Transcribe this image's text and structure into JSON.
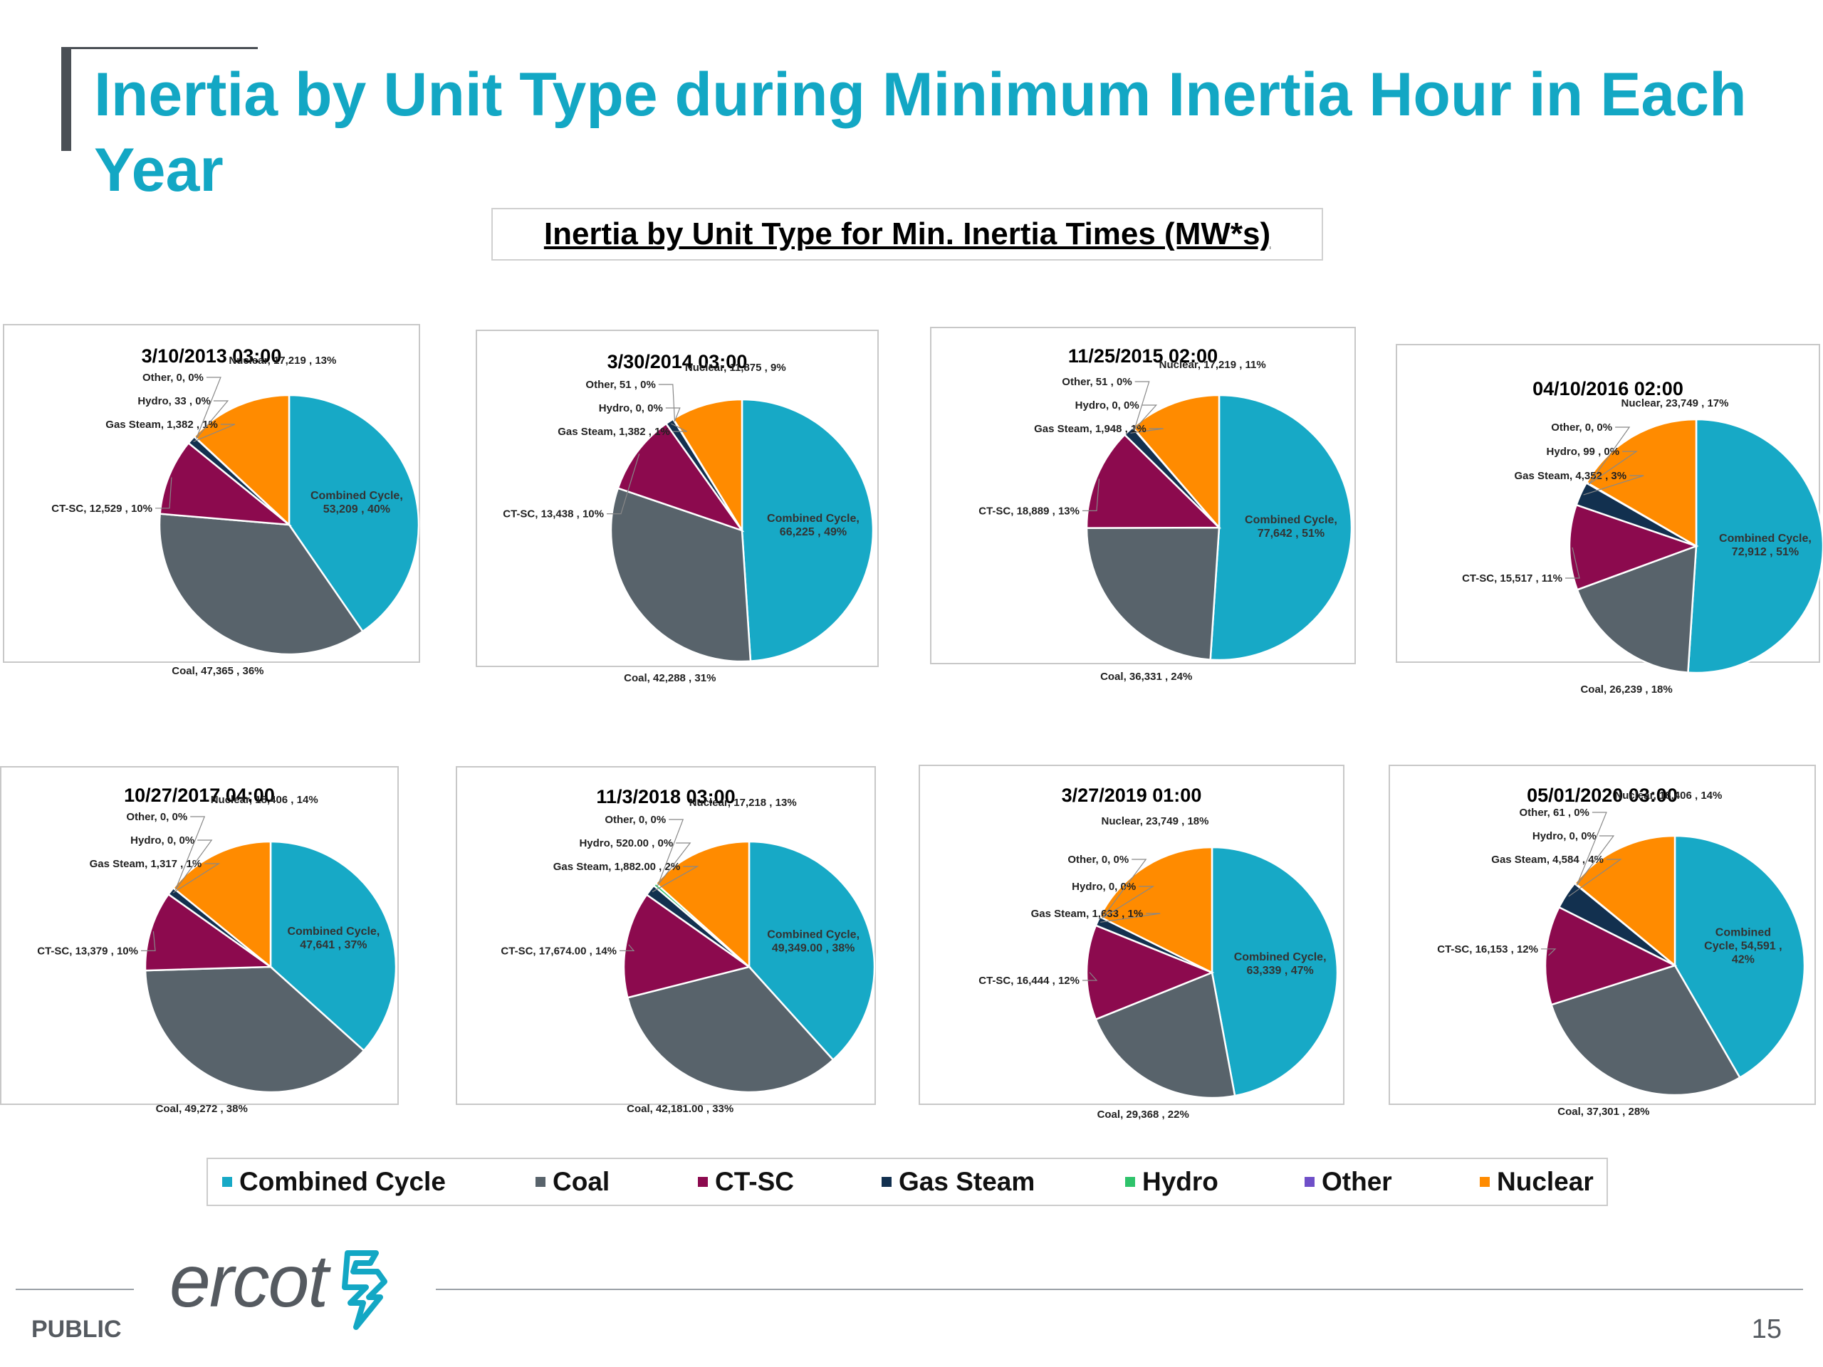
{
  "slide": {
    "title": "Inertia by Unit Type during Minimum Inertia Hour in Each Year",
    "chart_heading": "Inertia by Unit Type for Min. Inertia Times (MW*s)",
    "footer_public": "PUBLIC",
    "page_number": "15",
    "logo_text": "ercot"
  },
  "colors": {
    "Combined Cycle": "#17a9c6",
    "Coal": "#58636b",
    "CT-SC": "#8c0a4e",
    "Gas Steam": "#12304f",
    "Hydro": "#2ec36b",
    "Other": "#6f4fc8",
    "Nuclear": "#ff8b00",
    "title": "#13a7c4"
  },
  "legend": [
    "Combined Cycle",
    "Coal",
    "CT-SC",
    "Gas Steam",
    "Hydro",
    "Other",
    "Nuclear"
  ],
  "chart_data": [
    {
      "type": "pie",
      "title": "3/10/2013 03:00",
      "slices": [
        {
          "name": "Combined Cycle",
          "value": 53209,
          "label": "Combined Cycle,|53,209 , 40%"
        },
        {
          "name": "Coal",
          "value": 47365,
          "label": "Coal, 47,365 , 36%"
        },
        {
          "name": "CT-SC",
          "value": 12529,
          "label": "CT-SC, 12,529 , 10%"
        },
        {
          "name": "Gas Steam",
          "value": 1382,
          "label": "Gas Steam, 1,382 , 1%"
        },
        {
          "name": "Hydro",
          "value": 33,
          "label": "Hydro, 33 , 0%"
        },
        {
          "name": "Other",
          "value": 0,
          "label": "Other, 0, 0%"
        },
        {
          "name": "Nuclear",
          "value": 17219,
          "label": "Nuclear, 17,219 , 13%"
        }
      ]
    },
    {
      "type": "pie",
      "title": "3/30/2014 03:00",
      "slices": [
        {
          "name": "Combined Cycle",
          "value": 66225,
          "label": "Combined Cycle,|66,225 , 49%"
        },
        {
          "name": "Coal",
          "value": 42288,
          "label": "Coal, 42,288 , 31%"
        },
        {
          "name": "CT-SC",
          "value": 13438,
          "label": "CT-SC, 13,438 , 10%"
        },
        {
          "name": "Gas Steam",
          "value": 1382,
          "label": "Gas Steam, 1,382 , 1%"
        },
        {
          "name": "Hydro",
          "value": 0,
          "label": "Hydro, 0, 0%"
        },
        {
          "name": "Other",
          "value": 51,
          "label": "Other, 51 , 0%"
        },
        {
          "name": "Nuclear",
          "value": 11875,
          "label": "Nuclear, 11,875 , 9%"
        }
      ]
    },
    {
      "type": "pie",
      "title": "11/25/2015 02:00",
      "slices": [
        {
          "name": "Combined Cycle",
          "value": 77642,
          "label": "Combined Cycle,|77,642 , 51%"
        },
        {
          "name": "Coal",
          "value": 36331,
          "label": "Coal, 36,331 , 24%"
        },
        {
          "name": "CT-SC",
          "value": 18889,
          "label": "CT-SC, 18,889 , 13%"
        },
        {
          "name": "Gas Steam",
          "value": 1948,
          "label": "Gas Steam, 1,948 , 1%"
        },
        {
          "name": "Hydro",
          "value": 0,
          "label": "Hydro, 0, 0%"
        },
        {
          "name": "Other",
          "value": 51,
          "label": "Other, 51 , 0%"
        },
        {
          "name": "Nuclear",
          "value": 17219,
          "label": "Nuclear, 17,219 , 11%"
        }
      ]
    },
    {
      "type": "pie",
      "title": "04/10/2016 02:00",
      "slices": [
        {
          "name": "Combined Cycle",
          "value": 72912,
          "label": "Combined Cycle,|72,912 , 51%"
        },
        {
          "name": "Coal",
          "value": 26239,
          "label": "Coal, 26,239 , 18%"
        },
        {
          "name": "CT-SC",
          "value": 15517,
          "label": "CT-SC, 15,517 , 11%"
        },
        {
          "name": "Gas Steam",
          "value": 4352,
          "label": "Gas Steam, 4,352 , 3%"
        },
        {
          "name": "Hydro",
          "value": 99,
          "label": "Hydro, 99 , 0%"
        },
        {
          "name": "Other",
          "value": 0,
          "label": "Other, 0, 0%"
        },
        {
          "name": "Nuclear",
          "value": 23749,
          "label": "Nuclear, 23,749 , 17%"
        }
      ]
    },
    {
      "type": "pie",
      "title": "10/27/2017 04:00",
      "slices": [
        {
          "name": "Combined Cycle",
          "value": 47641,
          "label": "Combined Cycle,|47,641 , 37%"
        },
        {
          "name": "Coal",
          "value": 49272,
          "label": "Coal, 49,272 , 38%"
        },
        {
          "name": "CT-SC",
          "value": 13379,
          "label": "CT-SC, 13,379 , 10%"
        },
        {
          "name": "Gas Steam",
          "value": 1317,
          "label": "Gas Steam, 1,317 , 1%"
        },
        {
          "name": "Hydro",
          "value": 0,
          "label": "Hydro, 0, 0%"
        },
        {
          "name": "Other",
          "value": 0,
          "label": "Other, 0, 0%"
        },
        {
          "name": "Nuclear",
          "value": 18406,
          "label": "Nuclear, 18,406 , 14%"
        }
      ]
    },
    {
      "type": "pie",
      "title": "11/3/2018 03:00",
      "slices": [
        {
          "name": "Combined Cycle",
          "value": 49349,
          "label": "Combined Cycle,|49,349.00 , 38%"
        },
        {
          "name": "Coal",
          "value": 42181,
          "label": "Coal, 42,181.00 , 33%"
        },
        {
          "name": "CT-SC",
          "value": 17674,
          "label": "CT-SC, 17,674.00 , 14%"
        },
        {
          "name": "Gas Steam",
          "value": 1882,
          "label": "Gas Steam, 1,882.00 , 2%"
        },
        {
          "name": "Hydro",
          "value": 520,
          "label": "Hydro, 520.00 , 0%"
        },
        {
          "name": "Other",
          "value": 0,
          "label": "Other, 0, 0%"
        },
        {
          "name": "Nuclear",
          "value": 17218,
          "label": "Nuclear, 17,218 , 13%"
        }
      ]
    },
    {
      "type": "pie",
      "title": "3/27/2019 01:00",
      "slices": [
        {
          "name": "Combined Cycle",
          "value": 63339,
          "label": "Combined Cycle,|63,339 , 47%"
        },
        {
          "name": "Coal",
          "value": 29368,
          "label": "Coal, 29,368 , 22%"
        },
        {
          "name": "CT-SC",
          "value": 16444,
          "label": "CT-SC, 16,444 , 12%"
        },
        {
          "name": "Gas Steam",
          "value": 1633,
          "label": "Gas Steam, 1,633 , 1%"
        },
        {
          "name": "Hydro",
          "value": 0,
          "label": "Hydro, 0, 0%"
        },
        {
          "name": "Other",
          "value": 0,
          "label": "Other, 0, 0%"
        },
        {
          "name": "Nuclear",
          "value": 23749,
          "label": "Nuclear, 23,749 , 18%"
        }
      ]
    },
    {
      "type": "pie",
      "title": "05/01/2020 03:00",
      "slices": [
        {
          "name": "Combined Cycle",
          "value": 54591,
          "label": "Combined|Cycle, 54,591 ,|42%"
        },
        {
          "name": "Coal",
          "value": 37301,
          "label": "Coal, 37,301 , 28%"
        },
        {
          "name": "CT-SC",
          "value": 16153,
          "label": "CT-SC, 16,153 , 12%"
        },
        {
          "name": "Gas Steam",
          "value": 4584,
          "label": "Gas Steam, 4,584 , 4%"
        },
        {
          "name": "Hydro",
          "value": 0,
          "label": "Hydro, 0, 0%"
        },
        {
          "name": "Other",
          "value": 61,
          "label": "Other, 61 , 0%"
        },
        {
          "name": "Nuclear",
          "value": 18406,
          "label": "Nuclear, 18,406 , 14%"
        }
      ]
    }
  ]
}
